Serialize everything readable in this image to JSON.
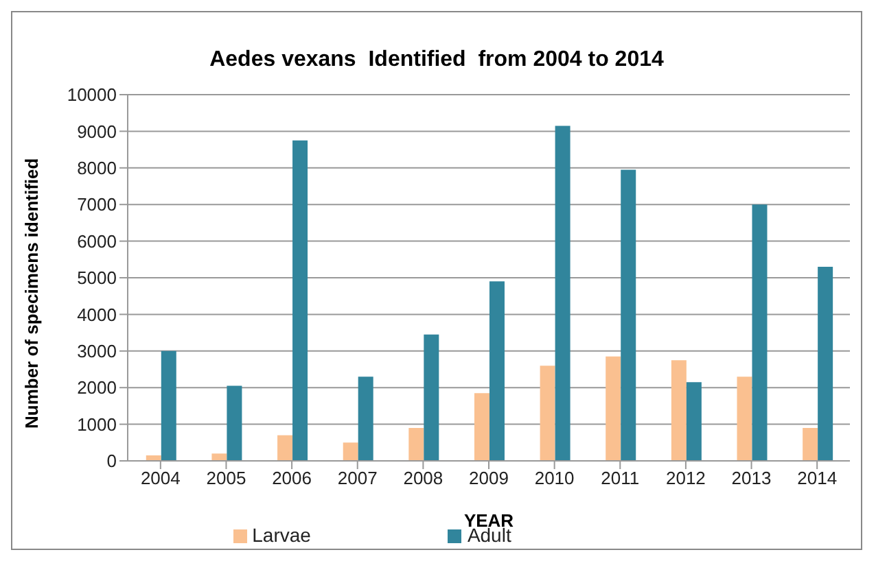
{
  "chart_data": {
    "type": "bar",
    "title": "Aedes vexans  Identified  from 2004 to 2014",
    "xlabel": "YEAR",
    "ylabel": "Number of specimens identified",
    "categories": [
      "2004",
      "2005",
      "2006",
      "2007",
      "2008",
      "2009",
      "2010",
      "2011",
      "2012",
      "2013",
      "2014"
    ],
    "series": [
      {
        "name": "Larvae",
        "color": "#fac090",
        "values": [
          150,
          200,
          700,
          500,
          900,
          1850,
          2600,
          2850,
          2750,
          2300,
          900
        ]
      },
      {
        "name": "Adult",
        "color": "#31859c",
        "values": [
          3000,
          2050,
          8750,
          2300,
          3450,
          4900,
          9150,
          7950,
          2150,
          7000,
          5300
        ]
      }
    ],
    "ylim": [
      0,
      10000
    ],
    "yticks": [
      0,
      1000,
      2000,
      3000,
      4000,
      5000,
      6000,
      7000,
      8000,
      9000,
      10000
    ],
    "grid": "y",
    "legend": "bottom"
  }
}
